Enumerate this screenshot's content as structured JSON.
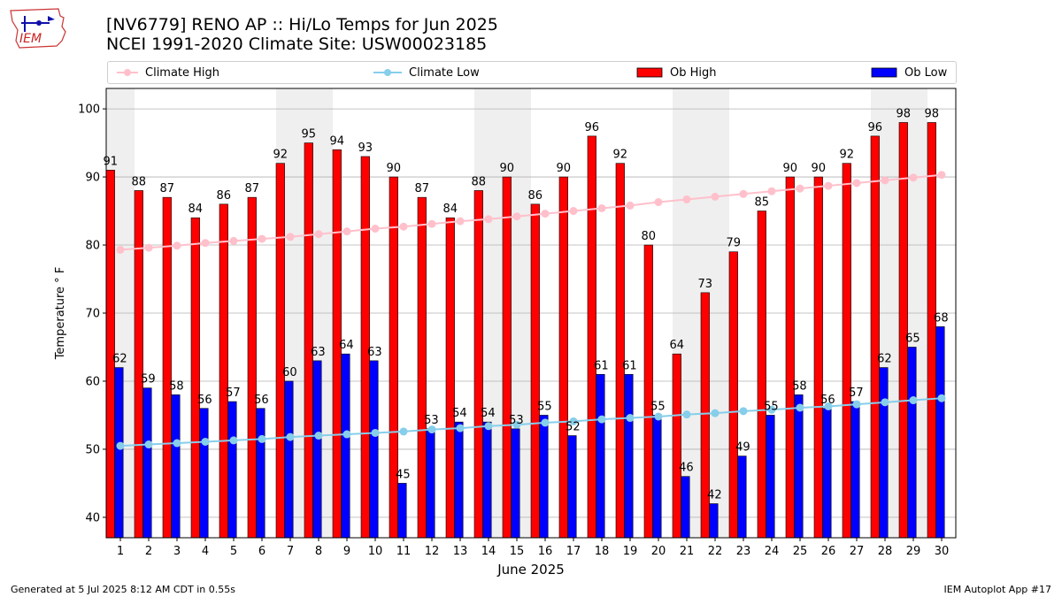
{
  "header": {
    "title": "[NV6779] RENO AP :: Hi/Lo Temps for Jun 2025",
    "subtitle": "NCEI 1991-2020 Climate Site: USW00023185",
    "logo_text": "IEM"
  },
  "legend": {
    "climate_high": "Climate High",
    "climate_low": "Climate Low",
    "ob_high": "Ob High",
    "ob_low": "Ob Low"
  },
  "footer": {
    "generated": "Generated at 5 Jul 2025 8:12 AM CDT in 0.55s",
    "app": "IEM Autoplot App #17"
  },
  "colors": {
    "ob_high": "#ff0000",
    "ob_low": "#0000ff",
    "climate_high": "#ffc0cb",
    "climate_low": "#87ceeb",
    "weekend_shade": "#efefef"
  },
  "chart_data": {
    "type": "bar",
    "xlabel": "June 2025",
    "ylabel": "Temperature ° F",
    "ylim": [
      37,
      103
    ],
    "yticks": [
      40,
      50,
      60,
      70,
      80,
      90,
      100
    ],
    "grid": true,
    "legend_position": "top",
    "categories": [
      "1",
      "2",
      "3",
      "4",
      "5",
      "6",
      "7",
      "8",
      "9",
      "10",
      "11",
      "12",
      "13",
      "14",
      "15",
      "16",
      "17",
      "18",
      "19",
      "20",
      "21",
      "22",
      "23",
      "24",
      "25",
      "26",
      "27",
      "28",
      "29",
      "30"
    ],
    "shaded_days": [
      1,
      7,
      8,
      14,
      15,
      21,
      22,
      28,
      29
    ],
    "series": [
      {
        "name": "Ob High",
        "kind": "bar",
        "values": [
          91,
          88,
          87,
          84,
          86,
          87,
          92,
          95,
          94,
          93,
          90,
          87,
          84,
          88,
          90,
          86,
          90,
          96,
          92,
          80,
          64,
          73,
          79,
          85,
          90,
          90,
          92,
          96,
          98,
          98
        ]
      },
      {
        "name": "Ob Low",
        "kind": "bar",
        "values": [
          62,
          59,
          58,
          56,
          57,
          56,
          60,
          63,
          64,
          63,
          45,
          53,
          54,
          54,
          53,
          55,
          52,
          61,
          61,
          55,
          46,
          42,
          49,
          55,
          58,
          56,
          57,
          62,
          65,
          68
        ]
      },
      {
        "name": "Climate High",
        "kind": "line",
        "values": [
          79.3,
          79.6,
          79.9,
          80.3,
          80.6,
          80.9,
          81.2,
          81.6,
          82.0,
          82.4,
          82.7,
          83.1,
          83.5,
          83.8,
          84.2,
          84.6,
          85.0,
          85.4,
          85.8,
          86.3,
          86.7,
          87.1,
          87.5,
          87.9,
          88.3,
          88.7,
          89.1,
          89.5,
          89.9,
          90.3
        ]
      },
      {
        "name": "Climate Low",
        "kind": "line",
        "values": [
          50.5,
          50.7,
          50.9,
          51.1,
          51.3,
          51.5,
          51.8,
          52.0,
          52.2,
          52.4,
          52.6,
          52.9,
          53.1,
          53.4,
          53.6,
          53.9,
          54.1,
          54.4,
          54.6,
          54.8,
          55.1,
          55.3,
          55.6,
          55.8,
          56.1,
          56.3,
          56.6,
          56.9,
          57.2,
          57.5
        ]
      }
    ]
  }
}
